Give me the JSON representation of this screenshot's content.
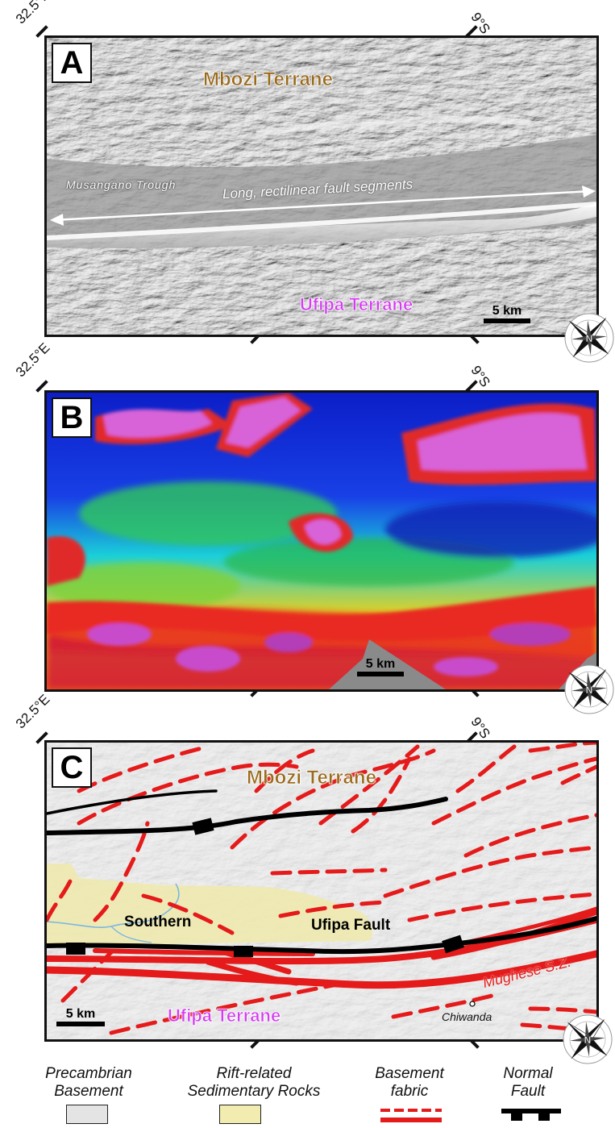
{
  "coords": {
    "lon_label": "32.5°E",
    "lat_label": "9°S"
  },
  "panel_a": {
    "letter": "A",
    "north_label": "Mbozi Terrane",
    "trough_label": "Musangano Trough",
    "fault_annotation": "Long, rectilinear fault segments",
    "south_label": "Ufipa Terrane",
    "scale_label": "5 km"
  },
  "panel_b": {
    "letter": "B",
    "scale_label": "5 km"
  },
  "panel_c": {
    "letter": "C",
    "north_label": "Mbozi Terrane",
    "fault_word_1": "Southern",
    "fault_word_2": "Ufipa Fault",
    "shear_zone_label": "Mughese S.Z.",
    "town_label": "Chiwanda",
    "south_label": "Ufipa Terrane",
    "scale_label": "5 km"
  },
  "compass": {
    "north_letter": "N"
  },
  "legend": {
    "items": [
      {
        "line1": "Precambrian",
        "line2": "Basement",
        "color": "#e4e4e4"
      },
      {
        "line1": "Rift-related",
        "line2": "Sedimentary Rocks",
        "color": "#f2ecb0"
      },
      {
        "line1": "Basement",
        "line2": "fabric",
        "color": "#e51a1a"
      },
      {
        "line1": "Normal",
        "line2": "Fault",
        "color": "#000000"
      }
    ]
  },
  "colors": {
    "mbozi_label": "#9a6a1c",
    "ufipa_label": "#d43cf0",
    "fabric_red": "#e51a1a",
    "sediment_yellow": "#efe9ad"
  }
}
